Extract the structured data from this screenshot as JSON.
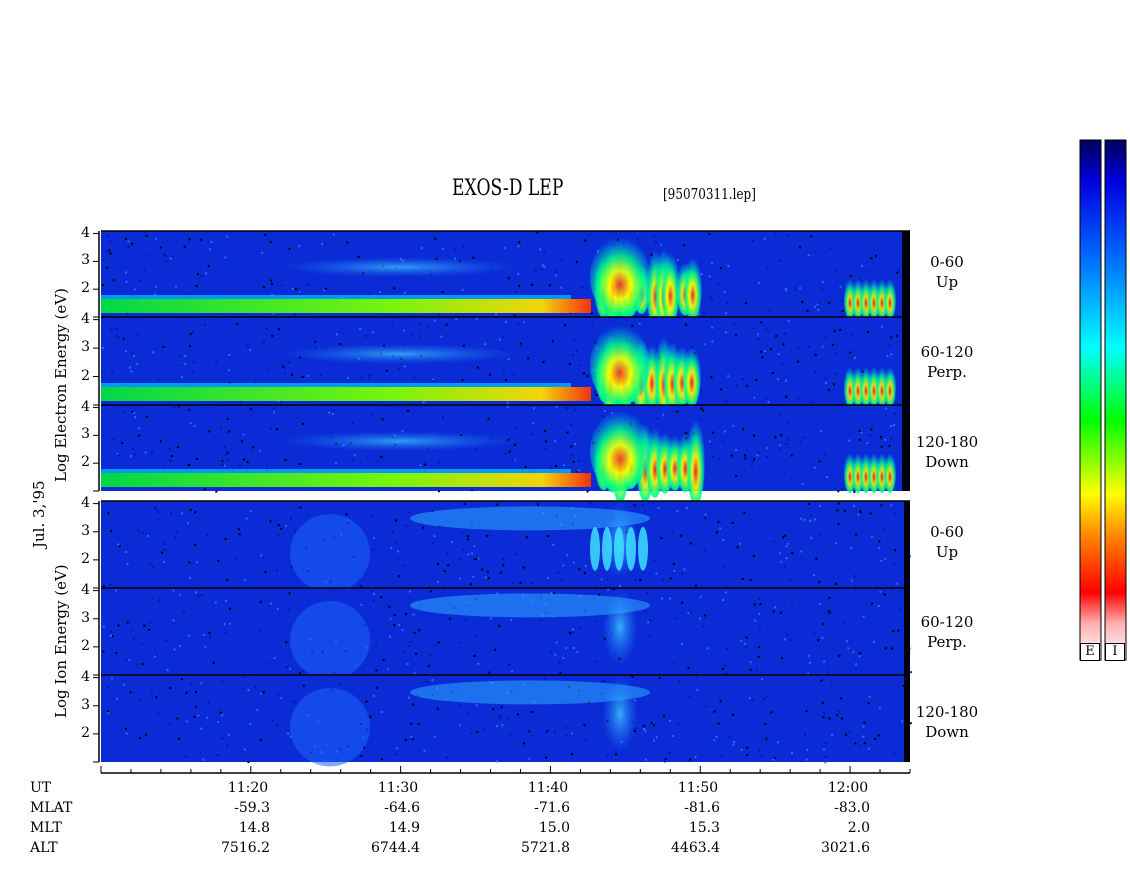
{
  "title": "EXOS-D LEP",
  "filename": "[95070311.lep]",
  "date_label": "Jul. 3,'95",
  "electron_ylabel": "Log  Electron  Energy (eV)",
  "ion_ylabel": "Log  Ion  Energy (eV)",
  "panel_labels": [
    {
      "range": "0-60",
      "dir": "Up"
    },
    {
      "range": "60-120",
      "dir": "Perp."
    },
    {
      "range": "120-180",
      "dir": "Down"
    },
    {
      "range": "0-60",
      "dir": "Up"
    },
    {
      "range": "60-120",
      "dir": "Perp."
    },
    {
      "range": "120-180",
      "dir": "Down"
    }
  ],
  "colorbar_labels": [
    "E",
    "I"
  ],
  "ephemeris": {
    "row_names": [
      "UT",
      "MLAT",
      "MLT",
      "ALT"
    ],
    "UT": [
      "11:20",
      "11:30",
      "11:40",
      "11:50",
      "12:00"
    ],
    "MLAT": [
      "-59.3",
      "-64.6",
      "-71.6",
      "-81.6",
      "-83.0"
    ],
    "MLT": [
      "14.8",
      "14.9",
      "15.0",
      "15.3",
      "2.0"
    ],
    "ALT": [
      "7516.2",
      "6744.4",
      "5721.8",
      "4463.4",
      "3021.6"
    ]
  },
  "colors": {
    "background_blue": "#0a2bd6",
    "colorbar_stops": [
      "#ffffff",
      "#ff0000",
      "#ffff00",
      "#00ff00",
      "#00ffff",
      "#0000ff",
      "#00008b"
    ]
  },
  "chart_data": {
    "type": "heatmap",
    "title": "EXOS-D LEP",
    "xlabel": "UT",
    "x_ticks": [
      "11:20",
      "11:30",
      "11:40",
      "11:50",
      "12:00"
    ],
    "xlim_minutes_ut": [
      "11:10",
      "12:04"
    ],
    "ylim_log_energy": [
      1,
      4
    ],
    "y_ticks": [
      2,
      3,
      4
    ],
    "panels": [
      {
        "species": "Electron",
        "pitch_angle": "0-60",
        "direction": "Up"
      },
      {
        "species": "Electron",
        "pitch_angle": "60-120",
        "direction": "Perp."
      },
      {
        "species": "Electron",
        "pitch_angle": "120-180",
        "direction": "Down"
      },
      {
        "species": "Ion",
        "pitch_angle": "0-60",
        "direction": "Up"
      },
      {
        "species": "Ion",
        "pitch_angle": "60-120",
        "direction": "Perp."
      },
      {
        "species": "Ion",
        "pitch_angle": "120-180",
        "direction": "Down"
      }
    ]
  }
}
